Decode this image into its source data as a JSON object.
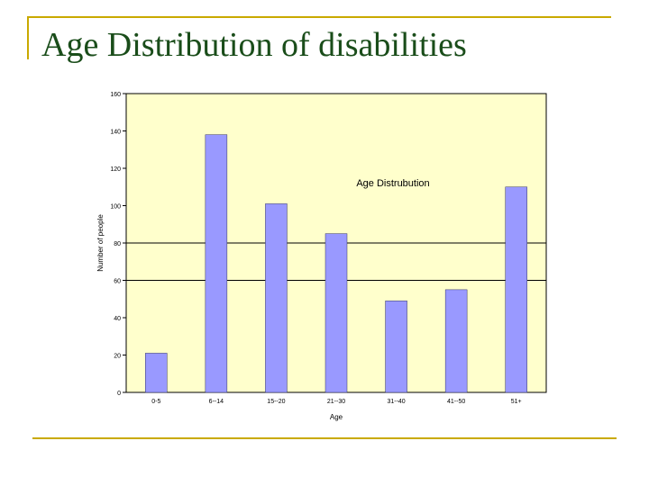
{
  "slide": {
    "title": "Age Distribution of disabilities"
  },
  "colors": {
    "accent_rule": "#c9a900",
    "title_text": "#1a4d1a",
    "plot_background": "#ffffcc",
    "bar_fill": "#9999ff"
  },
  "chart_data": {
    "type": "bar",
    "title": "Age Distrubution",
    "xlabel": "Age",
    "ylabel": "Number of people",
    "categories": [
      "0-5",
      "6--14",
      "15--20",
      "21--30",
      "31--40",
      "41--50",
      "51+"
    ],
    "values": [
      21,
      138,
      101,
      85,
      49,
      55,
      110
    ],
    "ylim": [
      0,
      160
    ],
    "yticks": [
      0,
      20,
      40,
      60,
      80,
      100,
      120,
      140,
      160
    ],
    "gridlines_at": [
      60,
      80
    ],
    "legend": "none"
  }
}
